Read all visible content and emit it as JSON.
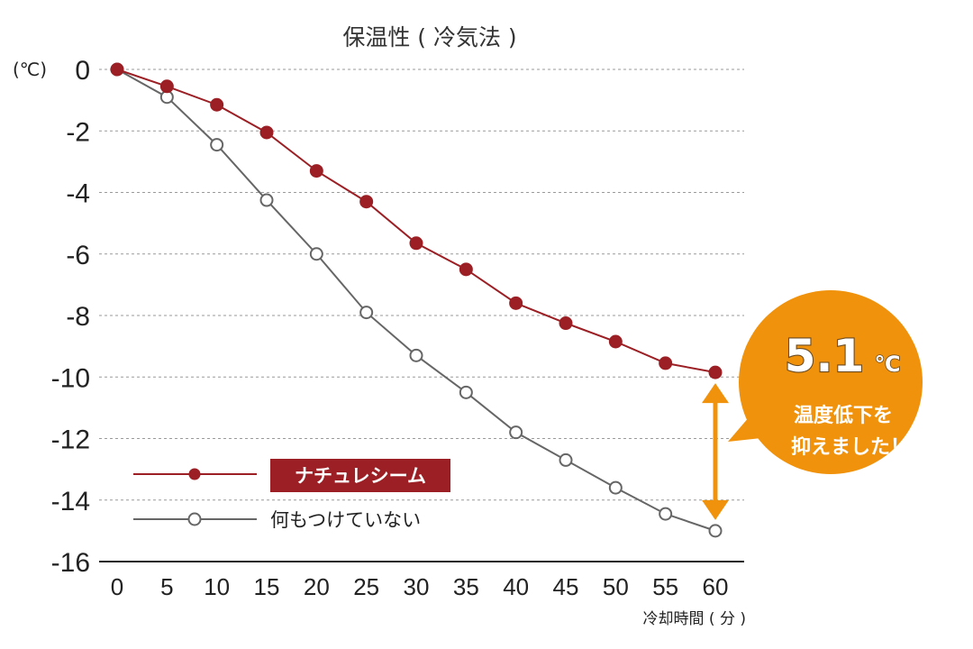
{
  "chart_data": {
    "type": "line",
    "title": "保温性 ( 冷気法 )",
    "xlabel": "冷却時間 ( 分 )",
    "ylabel": "",
    "y_unit": "(℃)",
    "x": [
      0,
      5,
      10,
      15,
      20,
      25,
      30,
      35,
      40,
      45,
      50,
      55,
      60
    ],
    "xlim": [
      0,
      60
    ],
    "ylim": [
      -16,
      0
    ],
    "yticks": [
      0,
      -2,
      -4,
      -6,
      -8,
      -10,
      -12,
      -14,
      -16
    ],
    "grid": "horizontal-dashed",
    "legend_position": "bottom-left",
    "series": [
      {
        "name": "ナチュレシーム",
        "color": "#9b1f24",
        "marker": "filled-circle",
        "values": [
          0,
          -0.55,
          -1.15,
          -2.05,
          -3.3,
          -4.3,
          -5.65,
          -6.5,
          -7.6,
          -8.25,
          -8.85,
          -9.55,
          -9.85
        ]
      },
      {
        "name": "何もつけていない",
        "color": "#666666",
        "marker": "open-circle",
        "values": [
          0,
          -0.9,
          -2.45,
          -4.25,
          -6.0,
          -7.9,
          -9.3,
          -10.5,
          -11.8,
          -12.7,
          -13.6,
          -14.45,
          -15.0
        ]
      }
    ],
    "annotation": {
      "value": "5.1",
      "unit": "℃",
      "line1": "温度低下を",
      "line2": "抑えました！",
      "color": "#f0920b"
    }
  }
}
